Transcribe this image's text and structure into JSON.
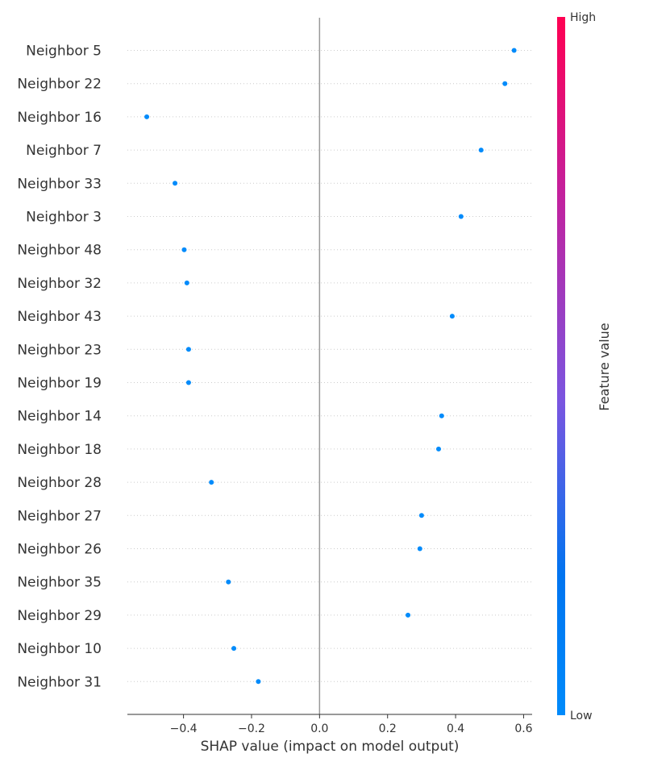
{
  "chart_data": {
    "type": "scatter",
    "xlabel": "SHAP value (impact on model output)",
    "xlim": [
      -0.565,
      0.625
    ],
    "xticks": [
      -0.4,
      -0.2,
      0.0,
      0.2,
      0.4,
      0.6
    ],
    "xtick_labels": [
      "−0.4",
      "−0.2",
      "0.0",
      "0.2",
      "0.4",
      "0.6"
    ],
    "zero_line": 0.0,
    "point_color": "#008bfb",
    "features": [
      {
        "name": "Neighbor 5",
        "shap": 0.572
      },
      {
        "name": "Neighbor 22",
        "shap": 0.545
      },
      {
        "name": "Neighbor 16",
        "shap": -0.508
      },
      {
        "name": "Neighbor 7",
        "shap": 0.475
      },
      {
        "name": "Neighbor 33",
        "shap": -0.425
      },
      {
        "name": "Neighbor 3",
        "shap": 0.416
      },
      {
        "name": "Neighbor 48",
        "shap": -0.398
      },
      {
        "name": "Neighbor 32",
        "shap": -0.39
      },
      {
        "name": "Neighbor 43",
        "shap": 0.39
      },
      {
        "name": "Neighbor 23",
        "shap": -0.385
      },
      {
        "name": "Neighbor 19",
        "shap": -0.385
      },
      {
        "name": "Neighbor 14",
        "shap": 0.359
      },
      {
        "name": "Neighbor 18",
        "shap": 0.35
      },
      {
        "name": "Neighbor 28",
        "shap": -0.318
      },
      {
        "name": "Neighbor 27",
        "shap": 0.3
      },
      {
        "name": "Neighbor 26",
        "shap": 0.295
      },
      {
        "name": "Neighbor 35",
        "shap": -0.268
      },
      {
        "name": "Neighbor 29",
        "shap": 0.26
      },
      {
        "name": "Neighbor 10",
        "shap": -0.252
      },
      {
        "name": "Neighbor 31",
        "shap": -0.18
      }
    ],
    "colorbar": {
      "title": "Feature value",
      "high_label": "High",
      "low_label": "Low",
      "high_color": "#ff0052",
      "low_color": "#008bfb"
    },
    "grid": "dotted row lines"
  }
}
